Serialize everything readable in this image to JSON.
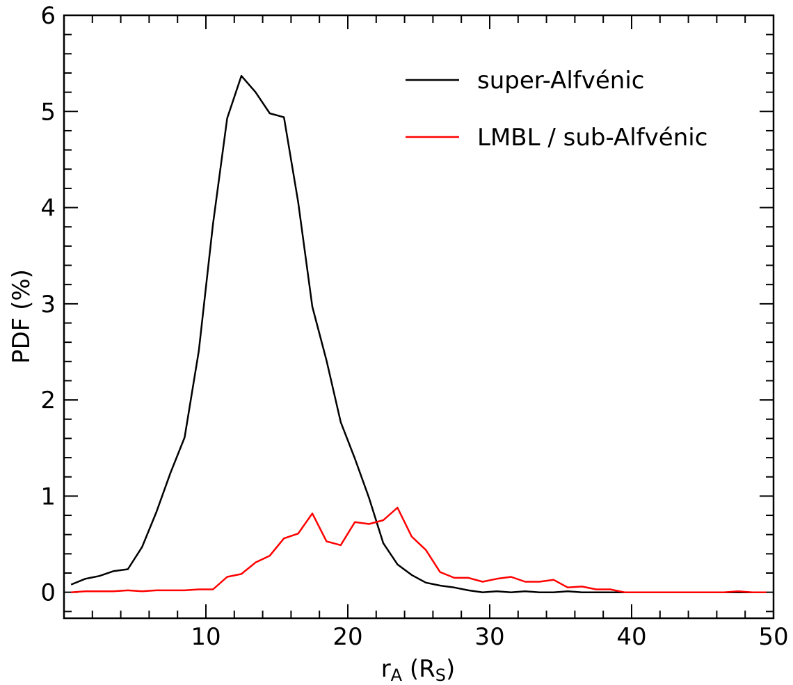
{
  "chart_data": {
    "type": "line",
    "xlabel_main": "r",
    "xlabel_sub": "A",
    "xlabel_mid": " (R",
    "xlabel_sub2": "S",
    "xlabel_end": ")",
    "ylabel": "PDF (%)",
    "xlim": [
      0,
      50
    ],
    "ylim": [
      -0.27,
      6
    ],
    "xticks": [
      10,
      20,
      30,
      40,
      50
    ],
    "xtick_labels": [
      "10",
      "20",
      "30",
      "40",
      "50"
    ],
    "yticks": [
      0,
      1,
      2,
      3,
      4,
      5,
      6
    ],
    "ytick_labels": [
      "0",
      "1",
      "2",
      "3",
      "4",
      "5",
      "6"
    ],
    "grid": false,
    "legend_position": "top-right",
    "series": [
      {
        "name": "super-Alfvénic",
        "color": "#000000",
        "x": [
          0.5,
          1.5,
          2.5,
          3.5,
          4.5,
          5.5,
          6.5,
          7.5,
          8.5,
          9.5,
          10.5,
          11.5,
          12.5,
          13.5,
          14.5,
          15.5,
          16.5,
          17.5,
          18.5,
          19.5,
          20.5,
          21.5,
          22.5,
          23.5,
          24.5,
          25.5,
          26.5,
          27.5,
          28.5,
          29.5,
          30.5,
          31.5,
          32.5,
          33.5,
          34.5,
          35.5,
          36.5,
          37.5,
          38.5,
          39.5,
          40.5,
          41.5,
          42.5,
          43.5,
          44.5,
          45.5,
          46.5,
          47.5,
          48.5,
          49.5
        ],
        "y": [
          0.08,
          0.14,
          0.17,
          0.22,
          0.24,
          0.47,
          0.83,
          1.24,
          1.61,
          2.51,
          3.83,
          4.93,
          5.37,
          5.2,
          4.98,
          4.94,
          4.06,
          2.97,
          2.41,
          1.77,
          1.39,
          0.98,
          0.51,
          0.29,
          0.18,
          0.1,
          0.07,
          0.05,
          0.02,
          0.0,
          0.01,
          0.0,
          0.01,
          0.0,
          0.0,
          0.01,
          0.0,
          0.0,
          0.0,
          0.0,
          0.0,
          0.0,
          0.0,
          0.0,
          0.0,
          0.0,
          0.0,
          0.0,
          0.0,
          0.0
        ]
      },
      {
        "name": "LMBL / sub-Alfvénic",
        "color": "#ff0000",
        "x": [
          0.5,
          1.5,
          2.5,
          3.5,
          4.5,
          5.5,
          6.5,
          7.5,
          8.5,
          9.5,
          10.5,
          11.5,
          12.5,
          13.5,
          14.5,
          15.5,
          16.5,
          17.5,
          18.5,
          19.5,
          20.5,
          21.5,
          22.5,
          23.5,
          24.5,
          25.5,
          26.5,
          27.5,
          28.5,
          29.5,
          30.5,
          31.5,
          32.5,
          33.5,
          34.5,
          35.5,
          36.5,
          37.5,
          38.5,
          39.5,
          40.5,
          41.5,
          42.5,
          43.5,
          44.5,
          45.5,
          46.5,
          47.5,
          48.5,
          49.5
        ],
        "y": [
          0.0,
          0.01,
          0.01,
          0.01,
          0.02,
          0.01,
          0.02,
          0.02,
          0.02,
          0.03,
          0.03,
          0.16,
          0.19,
          0.31,
          0.38,
          0.56,
          0.61,
          0.82,
          0.53,
          0.49,
          0.73,
          0.71,
          0.75,
          0.88,
          0.58,
          0.44,
          0.21,
          0.15,
          0.15,
          0.11,
          0.14,
          0.16,
          0.11,
          0.11,
          0.13,
          0.05,
          0.06,
          0.03,
          0.03,
          0.0,
          0.0,
          0.0,
          0.0,
          0.0,
          0.0,
          0.0,
          0.0,
          0.01,
          0.0,
          0.0
        ]
      }
    ]
  }
}
